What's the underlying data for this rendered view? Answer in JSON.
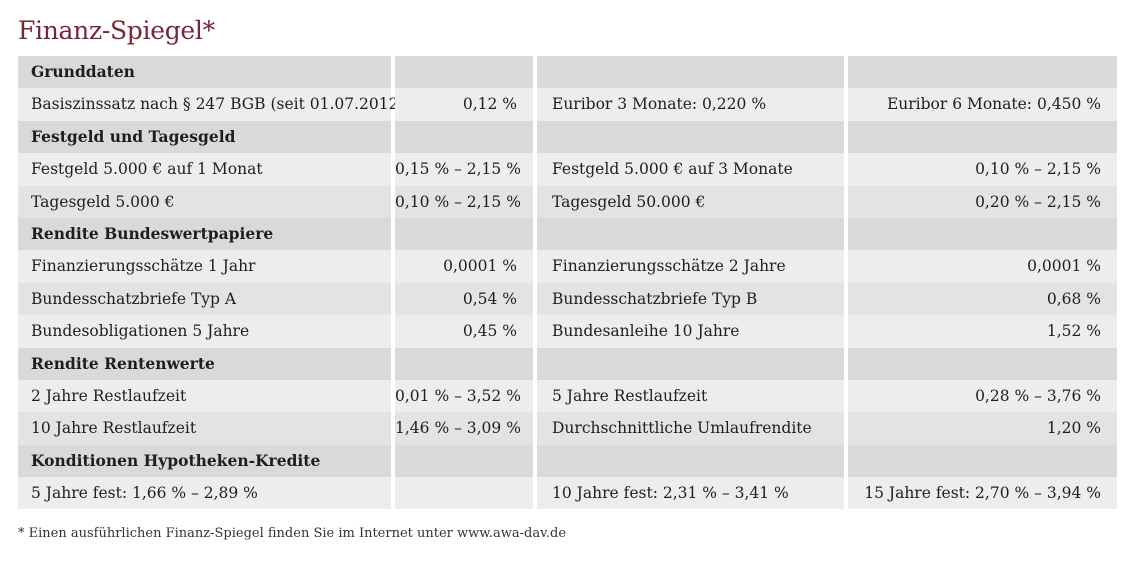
{
  "title": "Finanz-Spiegel",
  "title_marker": "*",
  "sections": [
    {
      "heading": "Grunddaten",
      "rows": [
        [
          "Basiszinssatz nach § 247 BGB (seit 01.07.2012)",
          "0,12 %",
          "Euribor 3 Monate: 0,220 %",
          "Euribor 6 Monate: 0,450 %"
        ]
      ]
    },
    {
      "heading": "Festgeld und Tagesgeld",
      "rows": [
        [
          "Festgeld 5.000 € auf 1 Monat",
          "0,15 % – 2,15 %",
          "Festgeld 5.000 € auf 3 Monate",
          "0,10 % – 2,15 %"
        ],
        [
          "Tagesgeld 5.000 €",
          "0,10 % – 2,15 %",
          "Tagesgeld 50.000 €",
          "0,20 % – 2,15 %"
        ]
      ]
    },
    {
      "heading": "Rendite Bundeswertpapiere",
      "rows": [
        [
          "Finanzierungsschätze 1 Jahr",
          "0,0001 %",
          "Finanzierungsschätze 2 Jahre",
          "0,0001 %"
        ],
        [
          "Bundesschatzbriefe Typ A",
          "0,54 %",
          "Bundesschatzbriefe Typ B",
          "0,68 %"
        ],
        [
          "Bundesobligationen 5 Jahre",
          "0,45 %",
          "Bundesanleihe 10 Jahre",
          "1,52 %"
        ]
      ]
    },
    {
      "heading": "Rendite Rentenwerte",
      "rows": [
        [
          "2 Jahre Restlaufzeit",
          "0,01 % – 3,52 %",
          "5 Jahre Restlaufzeit",
          "0,28 % – 3,76 %"
        ],
        [
          "10 Jahre Restlaufzeit",
          "1,46 % – 3,09 %",
          "Durchschnittliche Umlaufrendite",
          "1,20 %"
        ]
      ]
    },
    {
      "heading": "Konditionen Hypotheken-Kredite",
      "rows": [
        [
          "5 Jahre fest: 1,66 % – 2,89 %",
          "",
          "10 Jahre fest: 2,31 % – 3,41 %",
          "15 Jahre fest: 2,70 % – 3,94 %"
        ]
      ]
    }
  ],
  "footnote": "* Einen ausführlichen Finanz-Spiegel finden Sie im Internet unter www.awa-dav.de"
}
